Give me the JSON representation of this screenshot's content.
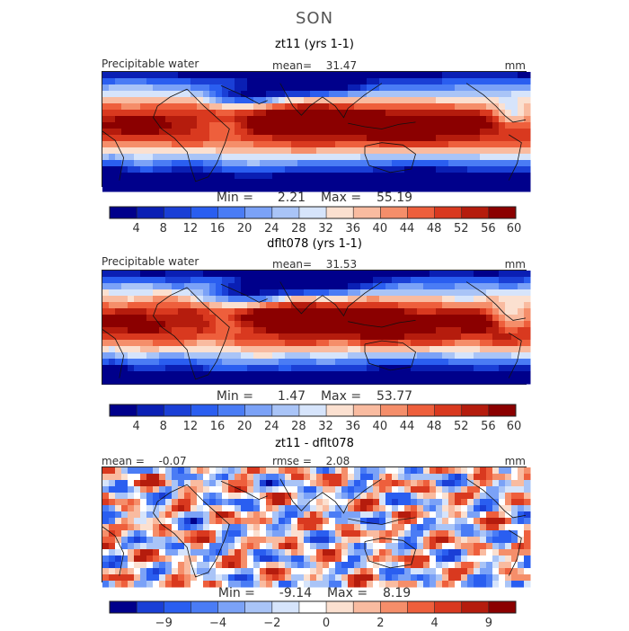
{
  "season": "SON",
  "panels": [
    {
      "title": "zt11 (yrs 1-1)",
      "left_label": "Precipitable water",
      "mean_label": "mean=",
      "mean_value": "31.47",
      "units": "mm",
      "min_label": "Min =",
      "min_value": "2.21",
      "max_label": "Max =",
      "max_value": "55.19"
    },
    {
      "title": "dflt078 (yrs 1-1)",
      "left_label": "Precipitable water",
      "mean_label": "mean=",
      "mean_value": "31.53",
      "units": "mm",
      "min_label": "Min =",
      "min_value": "1.47",
      "max_label": "Max =",
      "max_value": "53.77"
    },
    {
      "title": "zt11 - dflt078",
      "left_label": "mean =",
      "left_value": "-0.07",
      "rmse_label": "rmse =",
      "rmse_value": "2.08",
      "units": "mm",
      "min_label": "Min =",
      "min_value": "-9.14",
      "max_label": "Max =",
      "max_value": "8.19"
    }
  ],
  "chart_data": [
    {
      "type": "heatmap",
      "title": "zt11 (yrs 1-1)",
      "variable": "Precipitable water",
      "units": "mm",
      "mean": 31.47,
      "min": 2.21,
      "max": 55.19,
      "colorbar_ticks": [
        "4",
        "8",
        "12",
        "16",
        "20",
        "24",
        "28",
        "32",
        "36",
        "40",
        "44",
        "48",
        "52",
        "56",
        "60"
      ],
      "colorbar_colors": [
        "#00008b",
        "#0a1fb4",
        "#1a3fd6",
        "#2a5ef0",
        "#4a7cf5",
        "#7ba2f7",
        "#a9c4f7",
        "#d6e4fb",
        "#fbe0d0",
        "#f9bba0",
        "#f58e6a",
        "#ee5f3c",
        "#d9391f",
        "#b51c0d",
        "#8b0000"
      ]
    },
    {
      "type": "heatmap",
      "title": "dflt078 (yrs 1-1)",
      "variable": "Precipitable water",
      "units": "mm",
      "mean": 31.53,
      "min": 1.47,
      "max": 53.77,
      "colorbar_ticks": [
        "4",
        "8",
        "12",
        "16",
        "20",
        "24",
        "28",
        "32",
        "36",
        "40",
        "44",
        "48",
        "52",
        "56",
        "60"
      ],
      "colorbar_colors": [
        "#00008b",
        "#0a1fb4",
        "#1a3fd6",
        "#2a5ef0",
        "#4a7cf5",
        "#7ba2f7",
        "#a9c4f7",
        "#d6e4fb",
        "#fbe0d0",
        "#f9bba0",
        "#f58e6a",
        "#ee5f3c",
        "#d9391f",
        "#b51c0d",
        "#8b0000"
      ]
    },
    {
      "type": "heatmap",
      "title": "zt11 - dflt078",
      "units": "mm",
      "mean": -0.07,
      "rmse": 2.08,
      "min": -9.14,
      "max": 8.19,
      "colorbar_ticks": [
        "-9",
        "-4",
        "-2",
        "0",
        "2",
        "4",
        "9"
      ],
      "colorbar_colors": [
        "#00008b",
        "#1a3fd6",
        "#2a5ef0",
        "#4a7cf5",
        "#7ba2f7",
        "#a9c4f7",
        "#d6e4fb",
        "#ffffff",
        "#fbe0d0",
        "#f9bba0",
        "#f58e6a",
        "#ee5f3c",
        "#d9391f",
        "#b51c0d",
        "#8b0000"
      ]
    }
  ]
}
